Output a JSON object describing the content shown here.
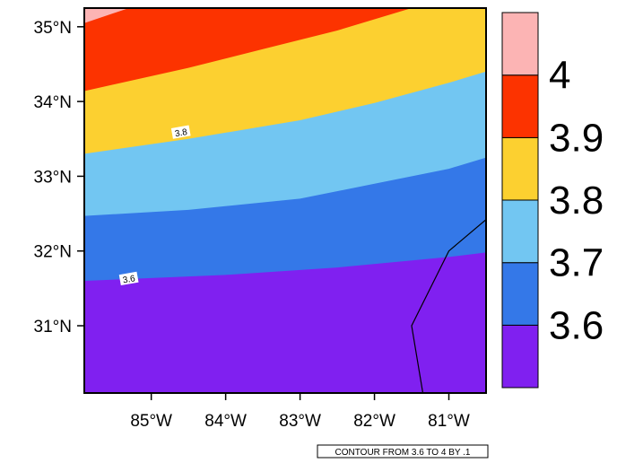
{
  "chart_data": {
    "type": "heatmap",
    "title": "",
    "xlabel": "",
    "ylabel": "",
    "xlim": [
      -85.9,
      -80.5
    ],
    "ylim": [
      30.1,
      35.25
    ],
    "x_ticks": [
      {
        "value": -85,
        "label": "85°W"
      },
      {
        "value": -84,
        "label": "84°W"
      },
      {
        "value": -83,
        "label": "83°W"
      },
      {
        "value": -82,
        "label": "82°W"
      },
      {
        "value": -81,
        "label": "81°W"
      }
    ],
    "y_ticks": [
      {
        "value": 31,
        "label": "31°N"
      },
      {
        "value": 32,
        "label": "32°N"
      },
      {
        "value": 33,
        "label": "33°N"
      },
      {
        "value": 34,
        "label": "34°N"
      },
      {
        "value": 35,
        "label": "35°N"
      }
    ],
    "color_levels": [
      {
        "range": "< 3.6",
        "color": "#8020f0"
      },
      {
        "range": "3.6 – 3.7",
        "color": "#3478e8"
      },
      {
        "range": "3.7 – 3.8",
        "color": "#72c6f2"
      },
      {
        "range": "3.8 – 3.9",
        "color": "#fcd030"
      },
      {
        "range": "3.9 – 4",
        "color": "#fc3300"
      },
      {
        "range": "> 4",
        "color": "#fcb4b4"
      }
    ],
    "colorbar_labels": [
      "3.6",
      "3.7",
      "3.8",
      "3.9",
      "4"
    ],
    "contour_levels": [
      {
        "value": 3.6,
        "points": [
          [
            -85.9,
            31.6
          ],
          [
            -84,
            31.68
          ],
          [
            -82.5,
            31.78
          ],
          [
            -81,
            31.92
          ],
          [
            -80.5,
            31.98
          ]
        ]
      },
      {
        "value": 3.7,
        "points": [
          [
            -85.9,
            32.47
          ],
          [
            -84.5,
            32.55
          ],
          [
            -83,
            32.7
          ],
          [
            -82,
            32.9
          ],
          [
            -81,
            33.1
          ],
          [
            -80.5,
            33.25
          ]
        ]
      },
      {
        "value": 3.8,
        "points": [
          [
            -85.9,
            33.3
          ],
          [
            -84.5,
            33.5
          ],
          [
            -83,
            33.75
          ],
          [
            -82,
            33.98
          ],
          [
            -81,
            34.25
          ],
          [
            -80.5,
            34.4
          ]
        ]
      },
      {
        "value": 3.9,
        "points": [
          [
            -85.9,
            34.14
          ],
          [
            -84.5,
            34.45
          ],
          [
            -83.5,
            34.7
          ],
          [
            -82.5,
            34.95
          ],
          [
            -81.5,
            35.25
          ]
        ]
      },
      {
        "value": 4.0,
        "points": [
          [
            -85.9,
            35.05
          ],
          [
            -85.3,
            35.25
          ]
        ]
      }
    ],
    "contour_labels": [
      {
        "text": "3.8",
        "lon": -84.6,
        "lat": 33.58
      },
      {
        "text": "3.6",
        "lon": -85.3,
        "lat": 31.62
      }
    ],
    "boundary_points": [
      [
        -81.35,
        30.1
      ],
      [
        -81.5,
        31.0
      ],
      [
        -81.0,
        32.0
      ],
      [
        -80.5,
        32.42
      ]
    ],
    "info_text": "CONTOUR FROM 3.6 TO 4 BY .1"
  }
}
